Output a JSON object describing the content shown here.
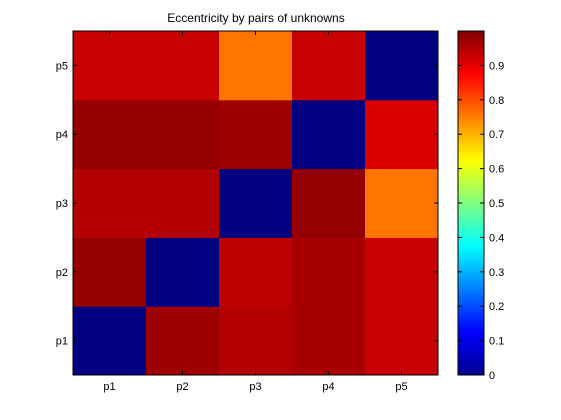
{
  "chart_data": {
    "type": "heatmap",
    "title": "Eccentricity by pairs of unknowns",
    "xlabel": "",
    "ylabel": "",
    "x_categories": [
      "p1",
      "p2",
      "p3",
      "p4",
      "p5"
    ],
    "y_categories": [
      "p1",
      "p2",
      "p3",
      "p4",
      "p5"
    ],
    "values": [
      [
        0.0,
        0.97,
        0.95,
        0.96,
        0.93
      ],
      [
        0.98,
        0.0,
        0.94,
        0.96,
        0.93
      ],
      [
        0.95,
        0.95,
        0.0,
        0.98,
        0.76
      ],
      [
        0.98,
        0.98,
        0.97,
        0.0,
        0.91
      ],
      [
        0.93,
        0.93,
        0.76,
        0.93,
        0.0
      ]
    ],
    "values_note_rows": "values[row] corresponds to y_categories[row]; values[row][col] to x_categories[col]",
    "colorbar": {
      "colormap": "jet",
      "min": 0,
      "max": 1,
      "ticks": [
        0,
        0.1,
        0.2,
        0.3,
        0.4,
        0.5,
        0.6,
        0.7,
        0.8,
        0.9
      ],
      "tick_labels": [
        "0",
        "0.1",
        "0.2",
        "0.3",
        "0.4",
        "0.5",
        "0.6",
        "0.7",
        "0.8",
        "0.9"
      ]
    }
  }
}
